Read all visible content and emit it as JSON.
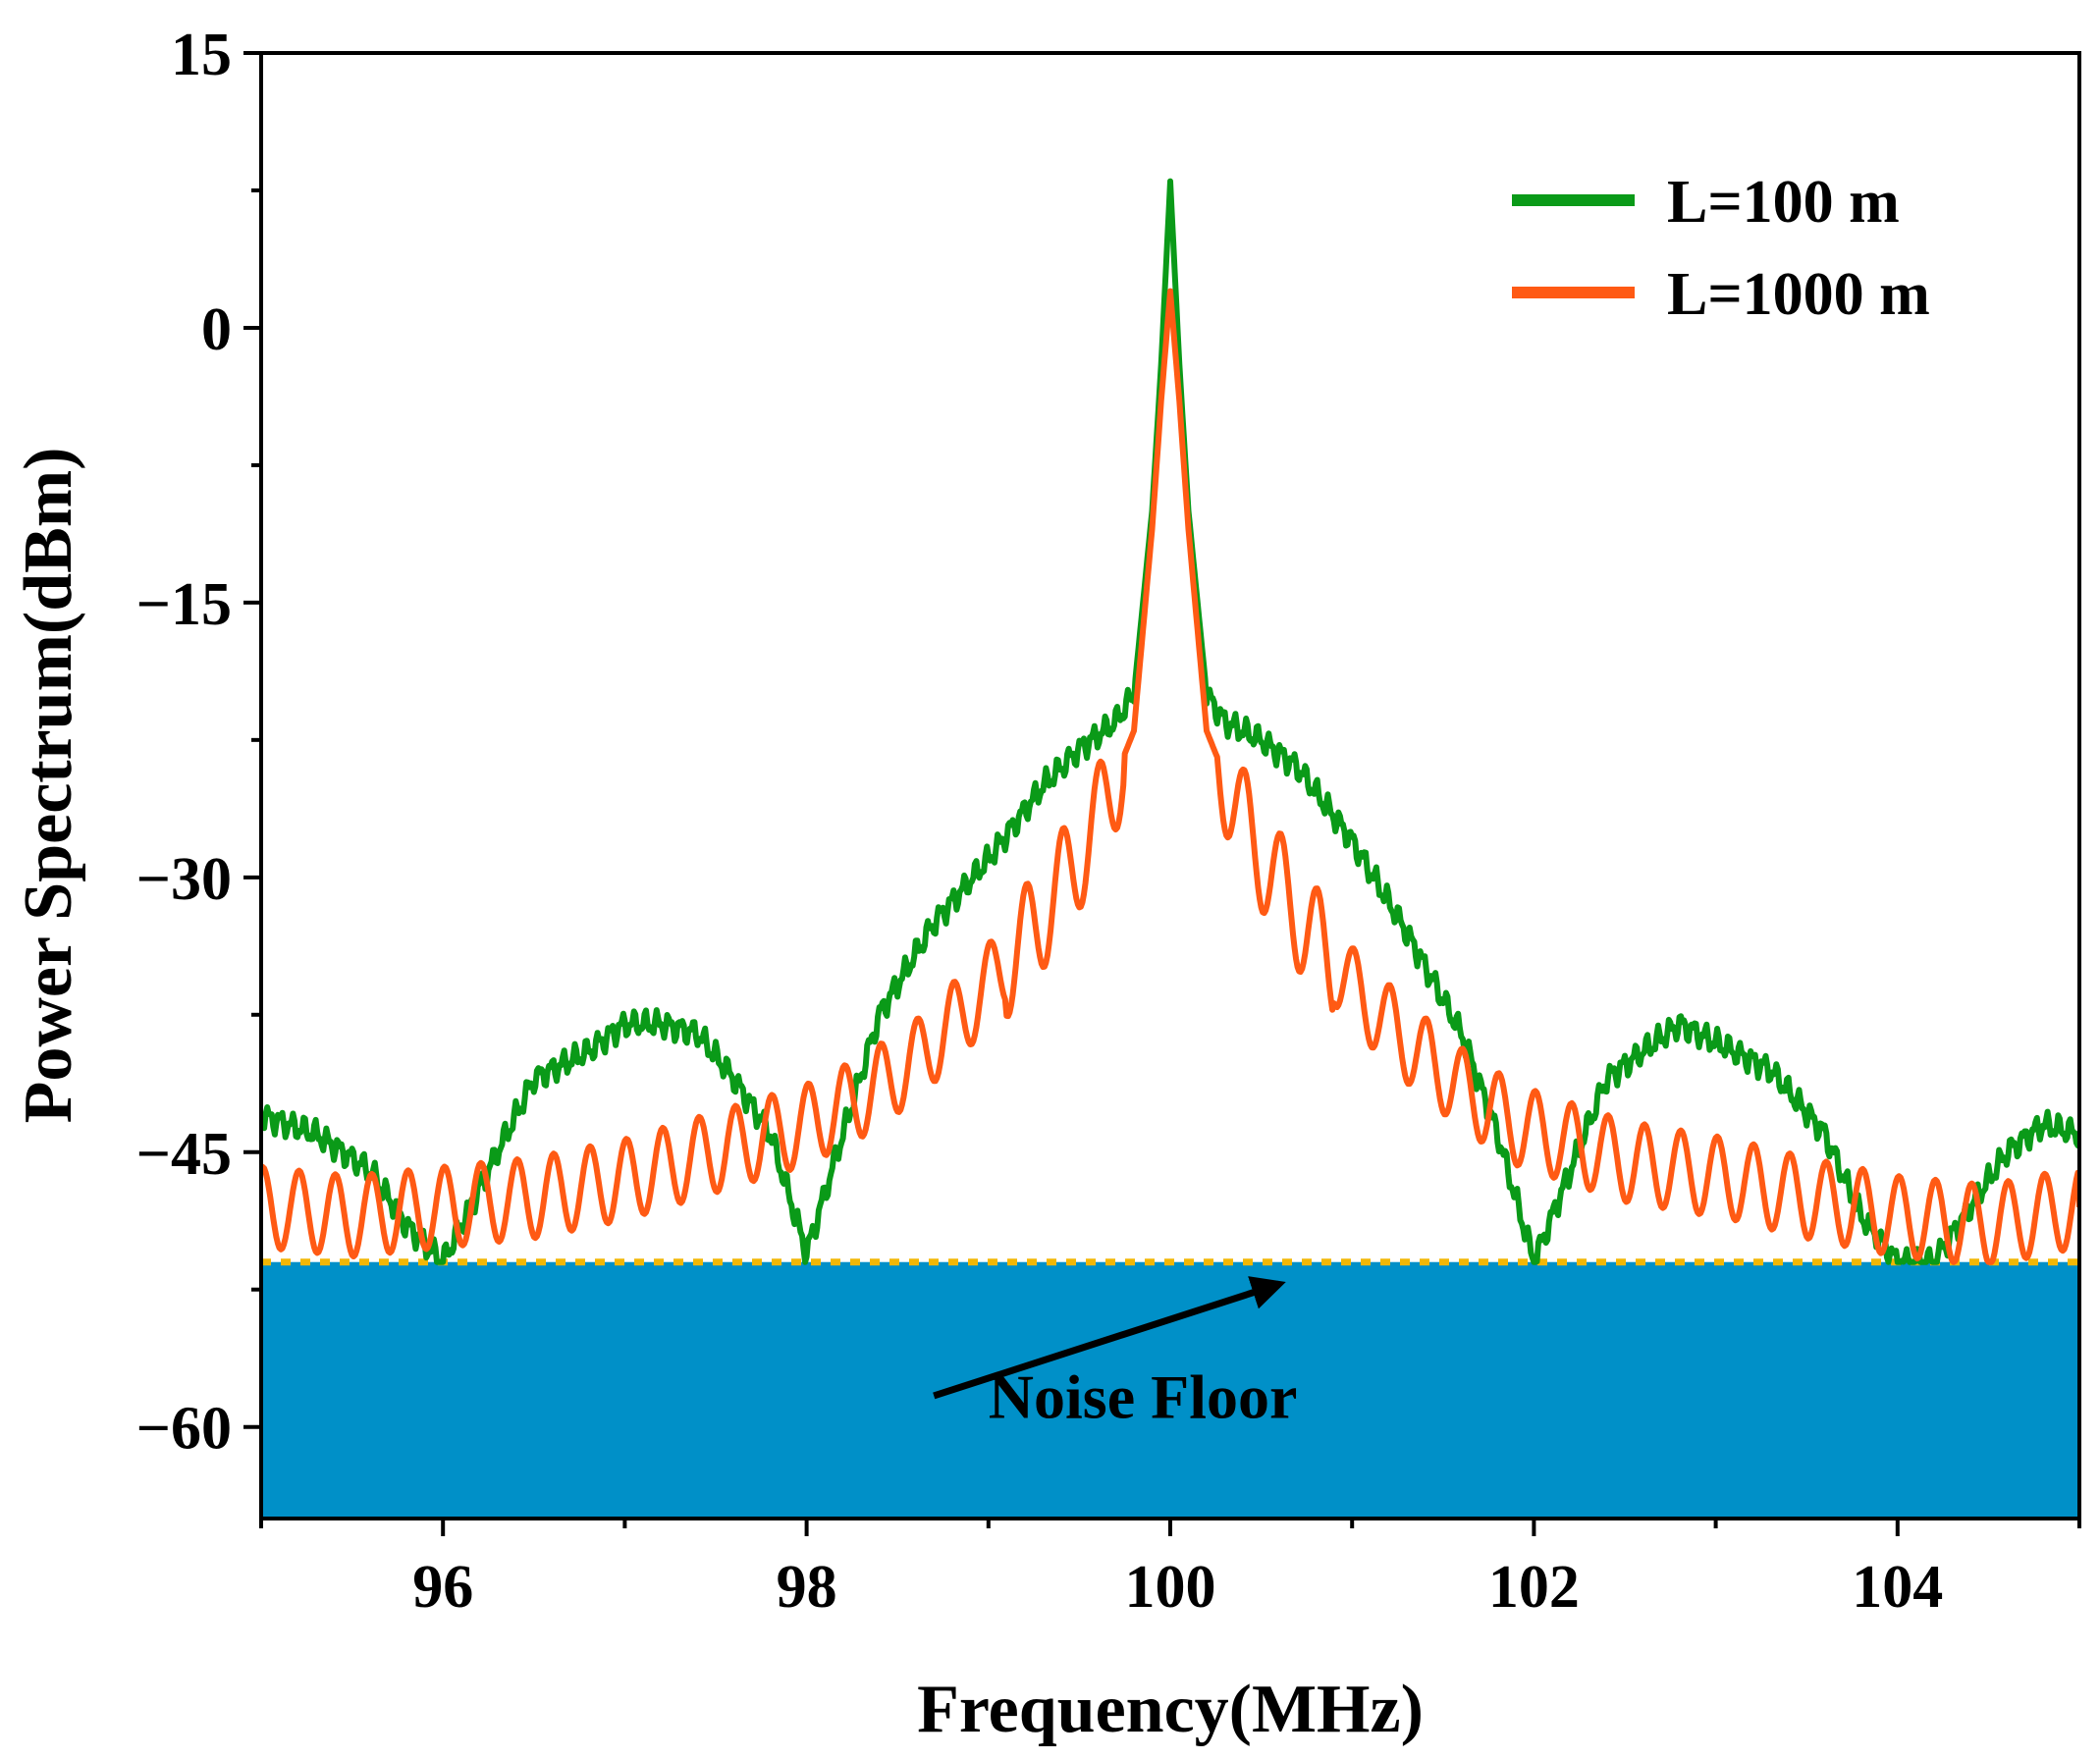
{
  "chart_data": {
    "type": "line",
    "title": "",
    "xlabel": "Frequency(MHz)",
    "ylabel": "Power Spectrum(dBm)",
    "xlim": [
      95,
      105
    ],
    "ylim": [
      -65,
      15
    ],
    "xticks": [
      96,
      98,
      100,
      102,
      104
    ],
    "xtick_labels": [
      "96",
      "98",
      "100",
      "102",
      "104"
    ],
    "xminor_step": 1,
    "yticks": [
      15,
      0,
      -15,
      -30,
      -45,
      -60
    ],
    "ytick_labels": [
      "15",
      "0",
      "−15",
      "−30",
      "−45",
      "−60"
    ],
    "legend_position": "top-right",
    "noise_floor": {
      "level": -51,
      "label": "Noise Floor",
      "fill_color": "#0090c8",
      "line_color": "#f2b705",
      "arrow_from": [
        98.7,
        -58.3
      ],
      "arrow_to": [
        100.6,
        -52.2
      ],
      "label_at": [
        99.0,
        -59.5
      ]
    },
    "series": [
      {
        "name": "L=100 m",
        "legend_label": "L=100 m",
        "color": "#0a9a18",
        "x": [
          95.0,
          95.3,
          95.6,
          95.8,
          96.0,
          96.3,
          96.5,
          96.8,
          97.0,
          97.2,
          97.4,
          97.6,
          97.8,
          98.0,
          98.2,
          98.4,
          98.7,
          99.0,
          99.3,
          99.5,
          99.7,
          99.8,
          99.9,
          99.95,
          100.0,
          100.05,
          100.1,
          100.2,
          100.3,
          100.5,
          100.7,
          101.0,
          101.3,
          101.6,
          101.8,
          102.0,
          102.2,
          102.4,
          102.6,
          102.8,
          103.0,
          103.3,
          103.6,
          103.8,
          104.0,
          104.2,
          104.4,
          104.6,
          104.8,
          105.0
        ],
        "values": [
          -43,
          -44,
          -46,
          -49,
          -51,
          -45,
          -41,
          -39.5,
          -38,
          -38,
          -38.5,
          -41,
          -44,
          -50.5,
          -44,
          -37.5,
          -32.5,
          -29,
          -25,
          -23,
          -21.5,
          -20,
          -10,
          -2,
          8,
          -2,
          -10,
          -20,
          -21.5,
          -22.5,
          -24,
          -28,
          -33,
          -38.5,
          -44,
          -51,
          -46,
          -41,
          -39.5,
          -38,
          -39,
          -40.5,
          -44,
          -48.5,
          -51,
          -51,
          -48,
          -45,
          -43.5,
          -44
        ]
      },
      {
        "name": "L=1000 m",
        "legend_label": "L=1000 m",
        "color": "#ff5a14",
        "x": [
          95.0,
          95.5,
          96.0,
          96.5,
          97.0,
          97.5,
          98.0,
          98.3,
          98.6,
          98.9,
          99.2,
          99.4,
          99.6,
          99.8,
          99.9,
          99.95,
          100.0,
          100.05,
          100.1,
          100.2,
          100.4,
          100.6,
          100.8,
          101.0,
          101.3,
          101.6,
          101.9,
          102.2,
          102.5,
          102.8,
          103.1,
          103.5,
          104.0,
          104.5,
          105.0
        ],
        "values": [
          -48,
          -48.5,
          -48,
          -47.5,
          -46.5,
          -45,
          -43.5,
          -42,
          -40,
          -37,
          -33.5,
          -30.5,
          -27,
          -22,
          -11,
          -4,
          2,
          -4,
          -11,
          -22,
          -27,
          -30.5,
          -33.5,
          -36,
          -39,
          -41.5,
          -43.5,
          -44.5,
          -45.5,
          -46,
          -46.5,
          -47.5,
          -48.5,
          -49,
          -48
        ]
      }
    ]
  }
}
